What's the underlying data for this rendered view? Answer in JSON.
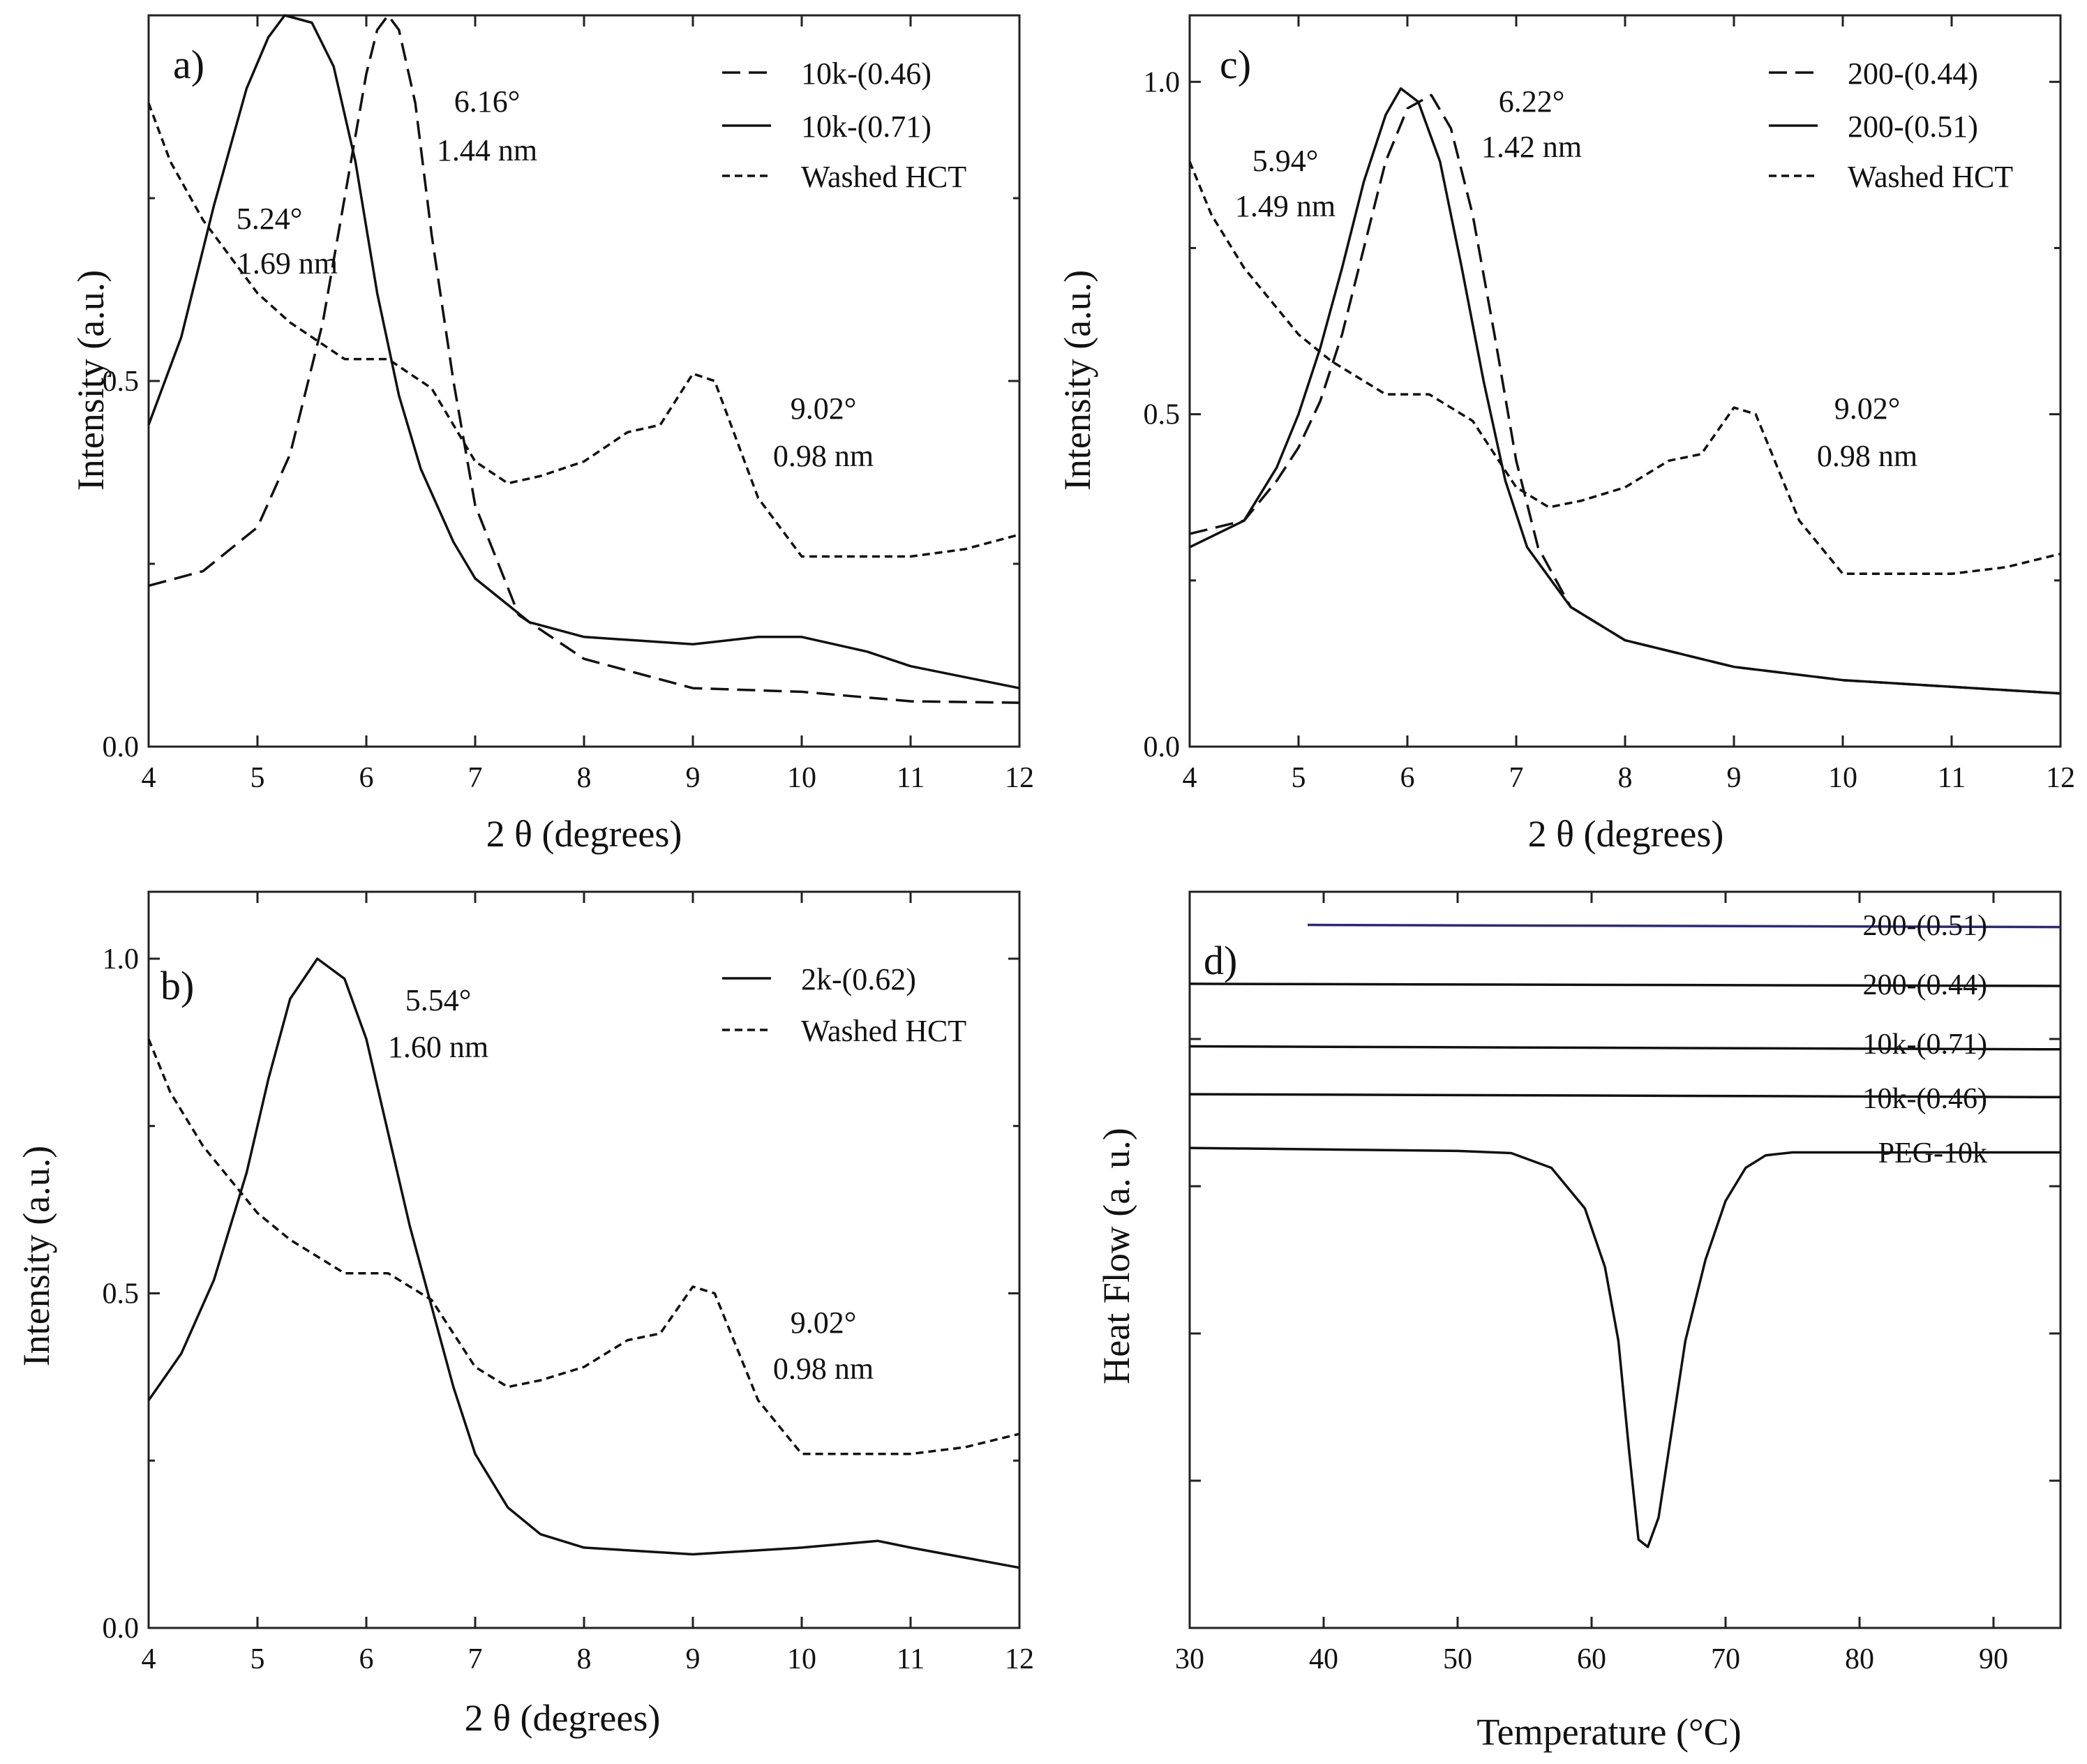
{
  "figure": {
    "panels": [
      "a)",
      "b)",
      "c)",
      "d)"
    ]
  },
  "chart_data": [
    {
      "id": "a",
      "type": "line",
      "panel_label": "a)",
      "xlabel": "2 θ (degrees)",
      "ylabel": "Intensity (a.u.)",
      "xlim": [
        4,
        12
      ],
      "ylim": [
        0,
        1.0
      ],
      "xticks": [
        4,
        5,
        6,
        7,
        8,
        9,
        10,
        11,
        12
      ],
      "yticks": [
        0.0,
        0.5
      ],
      "ytick_labels": [
        "0.0",
        "0.5"
      ],
      "legend_position": "top-right",
      "series": [
        {
          "name": "10k-(0.46)",
          "style": "long-dash",
          "x": [
            4.0,
            4.5,
            5.0,
            5.3,
            5.6,
            5.8,
            6.0,
            6.1,
            6.2,
            6.3,
            6.45,
            6.6,
            6.8,
            7.0,
            7.4,
            8.0,
            9.0,
            10.0,
            11.0,
            12.0
          ],
          "y": [
            0.22,
            0.24,
            0.3,
            0.4,
            0.58,
            0.75,
            0.92,
            0.98,
            1.0,
            0.98,
            0.88,
            0.7,
            0.5,
            0.33,
            0.18,
            0.12,
            0.08,
            0.075,
            0.062,
            0.06
          ]
        },
        {
          "name": "10k-(0.71)",
          "style": "solid",
          "x": [
            4.0,
            4.3,
            4.6,
            4.9,
            5.1,
            5.25,
            5.5,
            5.7,
            5.9,
            6.1,
            6.3,
            6.5,
            6.8,
            7.0,
            7.5,
            8.0,
            9.0,
            9.6,
            10.0,
            10.6,
            11.0,
            12.0
          ],
          "y": [
            0.44,
            0.56,
            0.74,
            0.9,
            0.97,
            1.0,
            0.99,
            0.93,
            0.8,
            0.62,
            0.48,
            0.38,
            0.28,
            0.23,
            0.17,
            0.15,
            0.14,
            0.15,
            0.15,
            0.13,
            0.11,
            0.08
          ]
        },
        {
          "name": "Washed HCT",
          "style": "short-dash",
          "x": [
            4.0,
            4.2,
            4.5,
            4.8,
            5.0,
            5.3,
            5.6,
            5.8,
            6.2,
            6.6,
            7.0,
            7.3,
            7.6,
            8.0,
            8.4,
            8.7,
            9.0,
            9.2,
            9.4,
            9.6,
            9.8,
            10.0,
            10.3,
            10.6,
            11.0,
            11.5,
            12.0
          ],
          "y": [
            0.88,
            0.8,
            0.72,
            0.66,
            0.62,
            0.58,
            0.55,
            0.53,
            0.53,
            0.49,
            0.39,
            0.36,
            0.37,
            0.39,
            0.43,
            0.44,
            0.51,
            0.5,
            0.42,
            0.34,
            0.3,
            0.26,
            0.26,
            0.26,
            0.26,
            0.27,
            0.29
          ]
        }
      ],
      "annotations": [
        {
          "line1": "5.24°",
          "line2": "1.69 nm"
        },
        {
          "line1": "6.16°",
          "line2": "1.44 nm"
        },
        {
          "line1": "9.02°",
          "line2": "0.98 nm"
        }
      ]
    },
    {
      "id": "b",
      "type": "line",
      "panel_label": "b)",
      "xlabel": "2 θ (degrees)",
      "ylabel": "Intensity (a.u.)",
      "xlim": [
        4,
        12
      ],
      "ylim": [
        0,
        1.1
      ],
      "xticks": [
        4,
        5,
        6,
        7,
        8,
        9,
        10,
        11,
        12
      ],
      "yticks": [
        0.0,
        0.5,
        1.0
      ],
      "ytick_labels": [
        "0.0",
        "0.5",
        "1.0"
      ],
      "legend_position": "top-right",
      "series": [
        {
          "name": "2k-(0.62)",
          "style": "solid",
          "x": [
            4.0,
            4.3,
            4.6,
            4.9,
            5.1,
            5.3,
            5.55,
            5.8,
            6.0,
            6.2,
            6.4,
            6.6,
            6.8,
            7.0,
            7.3,
            7.6,
            8.0,
            9.0,
            10.0,
            10.7,
            11.0,
            12.0
          ],
          "y": [
            0.34,
            0.41,
            0.52,
            0.68,
            0.82,
            0.94,
            1.0,
            0.97,
            0.88,
            0.74,
            0.6,
            0.48,
            0.36,
            0.26,
            0.18,
            0.14,
            0.12,
            0.11,
            0.12,
            0.13,
            0.12,
            0.09
          ]
        },
        {
          "name": "Washed HCT",
          "style": "short-dash",
          "x": [
            4.0,
            4.2,
            4.5,
            4.8,
            5.0,
            5.3,
            5.6,
            5.8,
            6.2,
            6.6,
            7.0,
            7.3,
            7.6,
            8.0,
            8.4,
            8.7,
            9.0,
            9.2,
            9.4,
            9.6,
            9.8,
            10.0,
            10.3,
            10.6,
            11.0,
            11.5,
            12.0
          ],
          "y": [
            0.88,
            0.8,
            0.72,
            0.66,
            0.62,
            0.58,
            0.55,
            0.53,
            0.53,
            0.49,
            0.39,
            0.36,
            0.37,
            0.39,
            0.43,
            0.44,
            0.51,
            0.5,
            0.42,
            0.34,
            0.3,
            0.26,
            0.26,
            0.26,
            0.26,
            0.27,
            0.29
          ]
        }
      ],
      "annotations": [
        {
          "line1": "5.54°",
          "line2": "1.60 nm"
        },
        {
          "line1": "9.02°",
          "line2": "0.98 nm"
        }
      ]
    },
    {
      "id": "c",
      "type": "line",
      "panel_label": "c)",
      "xlabel": "2 θ (degrees)",
      "ylabel": "Intensity (a.u.)",
      "xlim": [
        4,
        12
      ],
      "ylim": [
        0,
        1.1
      ],
      "xticks": [
        4,
        5,
        6,
        7,
        8,
        9,
        10,
        11,
        12
      ],
      "yticks": [
        0.0,
        0.5,
        1.0
      ],
      "ytick_labels": [
        "0.0",
        "0.5",
        "1.0"
      ],
      "legend_position": "top-right",
      "series": [
        {
          "name": "200-(0.44)",
          "style": "long-dash",
          "x": [
            4.0,
            4.5,
            4.8,
            5.0,
            5.2,
            5.4,
            5.6,
            5.8,
            6.0,
            6.22,
            6.4,
            6.6,
            6.8,
            7.0,
            7.2,
            7.5,
            8.0,
            9.0,
            10.0,
            11.0,
            12.0
          ],
          "y": [
            0.32,
            0.34,
            0.4,
            0.45,
            0.52,
            0.62,
            0.75,
            0.88,
            0.96,
            0.98,
            0.93,
            0.8,
            0.62,
            0.43,
            0.3,
            0.21,
            0.16,
            0.12,
            0.1,
            0.09,
            0.08
          ]
        },
        {
          "name": "200-(0.51)",
          "style": "solid",
          "x": [
            4.0,
            4.5,
            4.8,
            5.0,
            5.2,
            5.4,
            5.6,
            5.8,
            5.94,
            6.1,
            6.3,
            6.5,
            6.7,
            6.9,
            7.1,
            7.5,
            8.0,
            9.0,
            10.0,
            11.0,
            12.0
          ],
          "y": [
            0.3,
            0.34,
            0.42,
            0.5,
            0.6,
            0.72,
            0.85,
            0.95,
            0.99,
            0.97,
            0.88,
            0.72,
            0.55,
            0.4,
            0.3,
            0.21,
            0.16,
            0.12,
            0.1,
            0.09,
            0.08
          ]
        },
        {
          "name": "Washed HCT",
          "style": "short-dash",
          "x": [
            4.0,
            4.2,
            4.5,
            4.8,
            5.0,
            5.3,
            5.6,
            5.8,
            6.2,
            6.6,
            7.0,
            7.3,
            7.6,
            8.0,
            8.4,
            8.7,
            9.0,
            9.2,
            9.4,
            9.6,
            9.8,
            10.0,
            10.3,
            10.6,
            11.0,
            11.5,
            12.0
          ],
          "y": [
            0.88,
            0.8,
            0.72,
            0.66,
            0.62,
            0.58,
            0.55,
            0.53,
            0.53,
            0.49,
            0.39,
            0.36,
            0.37,
            0.39,
            0.43,
            0.44,
            0.51,
            0.5,
            0.42,
            0.34,
            0.3,
            0.26,
            0.26,
            0.26,
            0.26,
            0.27,
            0.29
          ]
        }
      ],
      "annotations": [
        {
          "line1": "5.94°",
          "line2": "1.49 nm"
        },
        {
          "line1": "6.22°",
          "line2": "1.42 nm"
        },
        {
          "line1": "9.02°",
          "line2": "0.98 nm"
        }
      ]
    },
    {
      "id": "d",
      "type": "line",
      "panel_label": "d)",
      "xlabel": "Temperature (°C)",
      "ylabel": "Heat Flow (a. u.)",
      "xlim": [
        30,
        95
      ],
      "ylim": [
        0,
        1
      ],
      "xticks": [
        30,
        40,
        50,
        60,
        70,
        80,
        90
      ],
      "y_tick_count": 5,
      "series": [
        {
          "name": "200-(0.51)",
          "color": "#2a2a7a",
          "x": [
            38.8,
            95.0
          ],
          "y": [
            0.955,
            0.952
          ]
        },
        {
          "name": "200-(0.44)",
          "x": [
            30.0,
            95.0
          ],
          "y": [
            0.875,
            0.872
          ]
        },
        {
          "name": "10k-(0.71)",
          "x": [
            30.0,
            95.0
          ],
          "y": [
            0.79,
            0.786
          ]
        },
        {
          "name": "10k-(0.46)",
          "x": [
            30.0,
            95.0
          ],
          "y": [
            0.725,
            0.721
          ]
        },
        {
          "name": "PEG-10k",
          "x": [
            30.0,
            40.0,
            50.0,
            54.0,
            57.0,
            59.5,
            61.0,
            62.0,
            62.8,
            63.5,
            64.2,
            65.0,
            66.0,
            67.0,
            68.5,
            70.0,
            71.5,
            73.0,
            75.0,
            80.0,
            90.0,
            95.0
          ],
          "y": [
            0.652,
            0.65,
            0.648,
            0.645,
            0.625,
            0.57,
            0.49,
            0.39,
            0.24,
            0.12,
            0.11,
            0.15,
            0.27,
            0.39,
            0.5,
            0.58,
            0.625,
            0.642,
            0.646,
            0.646,
            0.646,
            0.646
          ]
        }
      ]
    }
  ]
}
